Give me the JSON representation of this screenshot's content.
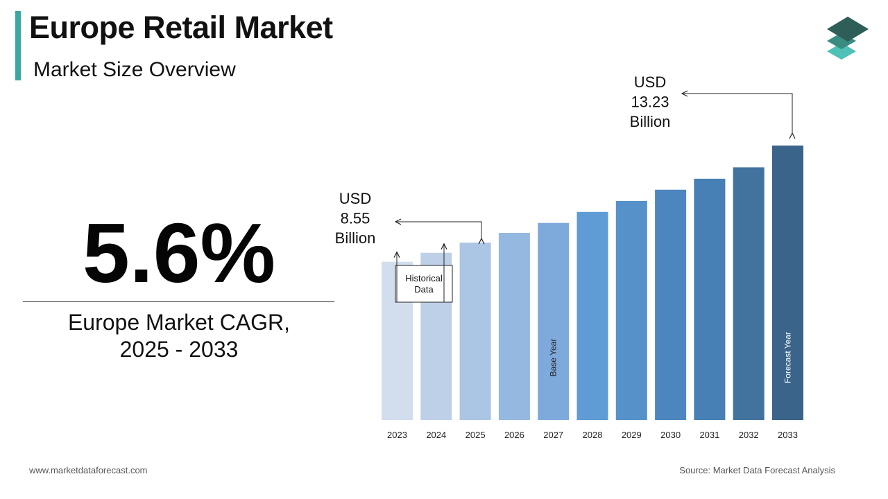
{
  "header": {
    "title": "Europe Retail Market",
    "subtitle": "Market Size Overview"
  },
  "cagr": {
    "value": "5.6%",
    "label_line1": "Europe Market CAGR,",
    "label_line2": "2025 - 2033"
  },
  "footer": {
    "website": "www.marketdataforecast.com",
    "source": "Source: Market Data Forecast Analysis"
  },
  "logo": {
    "icon": "stacked-layers-icon",
    "colors": [
      "#2e5e57",
      "#3a8c80",
      "#4fc1b6"
    ]
  },
  "chart_data": {
    "type": "bar",
    "categories": [
      "2023",
      "2024",
      "2025",
      "2026",
      "2027",
      "2028",
      "2029",
      "2030",
      "2031",
      "2032",
      "2033"
    ],
    "values": [
      7.63,
      8.06,
      8.55,
      9.02,
      9.5,
      10.03,
      10.56,
      11.1,
      11.63,
      12.18,
      13.23
    ],
    "colors": [
      "#d2deee",
      "#bed0e8",
      "#abc5e4",
      "#95b8e0",
      "#7ea9db",
      "#5f9bd4",
      "#5691ca",
      "#4d86be",
      "#4780b5",
      "#42739f",
      "#3b648a"
    ],
    "bar_labels": {
      "2027": "Base Year",
      "2033": "Forecast Year"
    },
    "annotations": {
      "historical": "Historical Data",
      "start_value_lines": [
        "USD",
        "8.55",
        "Billion"
      ],
      "end_value_lines": [
        "USD",
        "13.23",
        "Billion"
      ]
    }
  }
}
